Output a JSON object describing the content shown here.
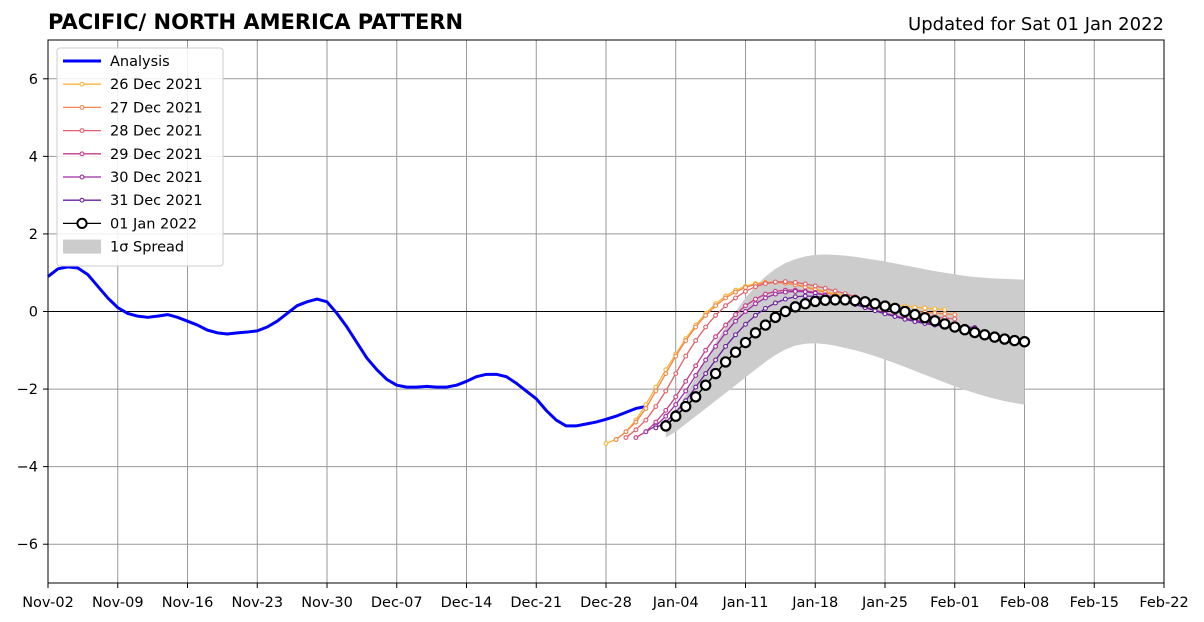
{
  "chart_data": {
    "type": "line",
    "title": "PACIFIC/ NORTH AMERICA PATTERN",
    "subtitle": "Updated for Sat 01 Jan 2022",
    "xlim": [
      "2021-11-02",
      "2022-02-22"
    ],
    "ylim": [
      -7,
      7
    ],
    "x_ticks": [
      "Nov-02",
      "Nov-09",
      "Nov-16",
      "Nov-23",
      "Nov-30",
      "Dec-07",
      "Dec-14",
      "Dec-21",
      "Dec-28",
      "Jan-04",
      "Jan-11",
      "Jan-18",
      "Jan-25",
      "Feb-01",
      "Feb-08",
      "Feb-15",
      "Feb-22"
    ],
    "y_ticks": [
      -6,
      -4,
      -2,
      0,
      2,
      4,
      6
    ],
    "grid": true,
    "legend_position": "upper left",
    "analysis": {
      "name": "Analysis",
      "color": "#0000ff",
      "start": "2021-11-02",
      "values": [
        0.9,
        1.1,
        1.15,
        1.12,
        0.95,
        0.65,
        0.35,
        0.1,
        -0.05,
        -0.12,
        -0.15,
        -0.12,
        -0.08,
        -0.15,
        -0.25,
        -0.35,
        -0.48,
        -0.55,
        -0.58,
        -0.55,
        -0.53,
        -0.5,
        -0.4,
        -0.25,
        -0.05,
        0.15,
        0.25,
        0.32,
        0.25,
        -0.05,
        -0.4,
        -0.8,
        -1.2,
        -1.5,
        -1.75,
        -1.9,
        -1.95,
        -1.95,
        -1.93,
        -1.95,
        -1.95,
        -1.9,
        -1.8,
        -1.68,
        -1.62,
        -1.62,
        -1.68,
        -1.85,
        -2.05,
        -2.25,
        -2.55,
        -2.8,
        -2.95,
        -2.95,
        -2.9,
        -2.85,
        -2.78,
        -2.7,
        -2.6,
        -2.5,
        -2.45
      ]
    },
    "forecasts": [
      {
        "name": "26 Dec 2021",
        "color": "#fcb53a",
        "start": "2021-12-28",
        "values": [
          -3.4,
          -3.3,
          -3.1,
          -2.8,
          -2.4,
          -1.95,
          -1.5,
          -1.1,
          -0.7,
          -0.35,
          -0.05,
          0.2,
          0.4,
          0.55,
          0.65,
          0.72,
          0.75,
          0.76,
          0.74,
          0.7,
          0.64,
          0.58,
          0.52,
          0.46,
          0.4,
          0.34,
          0.29,
          0.25,
          0.21,
          0.17,
          0.14,
          0.11,
          0.09,
          0.07,
          0.05
        ]
      },
      {
        "name": "27 Dec 2021",
        "color": "#f3874a",
        "start": "2021-12-29",
        "values": [
          -3.3,
          -3.1,
          -2.85,
          -2.5,
          -2.05,
          -1.6,
          -1.15,
          -0.75,
          -0.4,
          -0.1,
          0.15,
          0.35,
          0.5,
          0.62,
          0.7,
          0.74,
          0.75,
          0.73,
          0.69,
          0.63,
          0.56,
          0.49,
          0.42,
          0.35,
          0.28,
          0.22,
          0.17,
          0.12,
          0.08,
          0.04,
          0.0,
          -0.02,
          -0.04,
          -0.06,
          -0.08
        ]
      },
      {
        "name": "28 Dec 2021",
        "color": "#e0606a",
        "start": "2021-12-30",
        "values": [
          -3.25,
          -3.05,
          -2.8,
          -2.45,
          -2.05,
          -1.6,
          -1.15,
          -0.75,
          -0.4,
          -0.1,
          0.15,
          0.35,
          0.52,
          0.64,
          0.72,
          0.76,
          0.77,
          0.75,
          0.71,
          0.66,
          0.6,
          0.53,
          0.46,
          0.38,
          0.3,
          0.22,
          0.14,
          0.07,
          0.0,
          -0.06,
          -0.1,
          -0.14,
          -0.17,
          -0.19
        ]
      },
      {
        "name": "29 Dec 2021",
        "color": "#c73b88",
        "start": "2021-12-31",
        "values": [
          -3.25,
          -3.1,
          -2.85,
          -2.55,
          -2.2,
          -1.8,
          -1.4,
          -1.0,
          -0.65,
          -0.35,
          -0.08,
          0.15,
          0.32,
          0.45,
          0.52,
          0.55,
          0.55,
          0.53,
          0.49,
          0.43,
          0.36,
          0.28,
          0.2,
          0.12,
          0.04,
          -0.04,
          -0.11,
          -0.17,
          -0.22,
          -0.27,
          -0.31,
          -0.34,
          -0.36,
          -0.38
        ]
      },
      {
        "name": "30 Dec 2021",
        "color": "#9d2ba6",
        "start": "2022-01-01",
        "values": [
          -3.1,
          -2.95,
          -2.7,
          -2.4,
          -2.05,
          -1.65,
          -1.25,
          -0.9,
          -0.55,
          -0.25,
          0.0,
          0.2,
          0.35,
          0.45,
          0.5,
          0.52,
          0.51,
          0.47,
          0.42,
          0.35,
          0.27,
          0.19,
          0.11,
          0.03,
          -0.05,
          -0.12,
          -0.18,
          -0.23,
          -0.28,
          -0.32,
          -0.35,
          -0.38,
          -0.4,
          -0.41
        ]
      },
      {
        "name": "31 Dec 2021",
        "color": "#6a1f9f",
        "start": "2022-01-02",
        "values": [
          -3.0,
          -2.85,
          -2.6,
          -2.3,
          -1.95,
          -1.6,
          -1.25,
          -0.9,
          -0.6,
          -0.33,
          -0.1,
          0.08,
          0.22,
          0.32,
          0.38,
          0.4,
          0.39,
          0.36,
          0.31,
          0.25,
          0.18,
          0.1,
          0.02,
          -0.06,
          -0.13,
          -0.2,
          -0.26,
          -0.31,
          -0.35,
          -0.38,
          -0.4,
          -0.42,
          -0.43
        ]
      },
      {
        "name": "01 Jan 2022",
        "color": "#000000",
        "start": "2022-01-03",
        "values": [
          -2.95,
          -2.7,
          -2.45,
          -2.2,
          -1.9,
          -1.6,
          -1.3,
          -1.05,
          -0.8,
          -0.55,
          -0.35,
          -0.15,
          0.0,
          0.12,
          0.2,
          0.26,
          0.29,
          0.3,
          0.3,
          0.28,
          0.25,
          0.2,
          0.14,
          0.08,
          0.0,
          -0.08,
          -0.16,
          -0.24,
          -0.32,
          -0.4,
          -0.47,
          -0.54,
          -0.6,
          -0.66,
          -0.71,
          -0.75,
          -0.78
        ]
      }
    ],
    "spread": {
      "name": "1σ Spread",
      "color": "#cccccc",
      "start": "2022-01-03",
      "upper": [
        -2.85,
        -2.55,
        -2.15,
        -1.7,
        -1.25,
        -0.8,
        -0.4,
        0.0,
        0.35,
        0.65,
        0.9,
        1.1,
        1.25,
        1.35,
        1.42,
        1.46,
        1.47,
        1.46,
        1.44,
        1.41,
        1.37,
        1.33,
        1.29,
        1.24,
        1.19,
        1.14,
        1.09,
        1.04,
        1.0,
        0.96,
        0.92,
        0.89,
        0.87,
        0.85,
        0.84,
        0.83,
        0.82
      ],
      "lower": [
        -3.25,
        -3.1,
        -2.9,
        -2.7,
        -2.5,
        -2.3,
        -2.1,
        -1.9,
        -1.7,
        -1.5,
        -1.3,
        -1.12,
        -0.98,
        -0.88,
        -0.83,
        -0.82,
        -0.84,
        -0.88,
        -0.94,
        -1.0,
        -1.07,
        -1.15,
        -1.24,
        -1.33,
        -1.43,
        -1.53,
        -1.63,
        -1.73,
        -1.83,
        -1.93,
        -2.02,
        -2.1,
        -2.18,
        -2.25,
        -2.31,
        -2.36,
        -2.4
      ]
    }
  }
}
